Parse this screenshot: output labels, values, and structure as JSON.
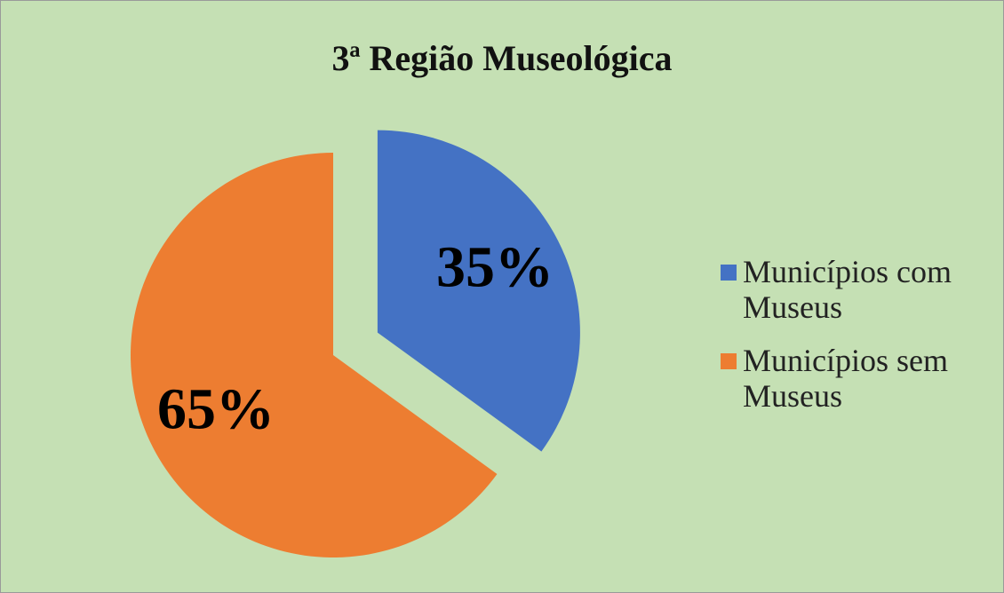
{
  "chart_data": {
    "type": "pie",
    "title": "3ª Região Museológica",
    "categories": [
      "Municípios com Museus",
      "Municípios sem Museus"
    ],
    "values": [
      35,
      65
    ],
    "value_labels": [
      "35%",
      "65%"
    ],
    "colors": [
      "#4472c4",
      "#ed7d31"
    ],
    "legend": "right"
  }
}
